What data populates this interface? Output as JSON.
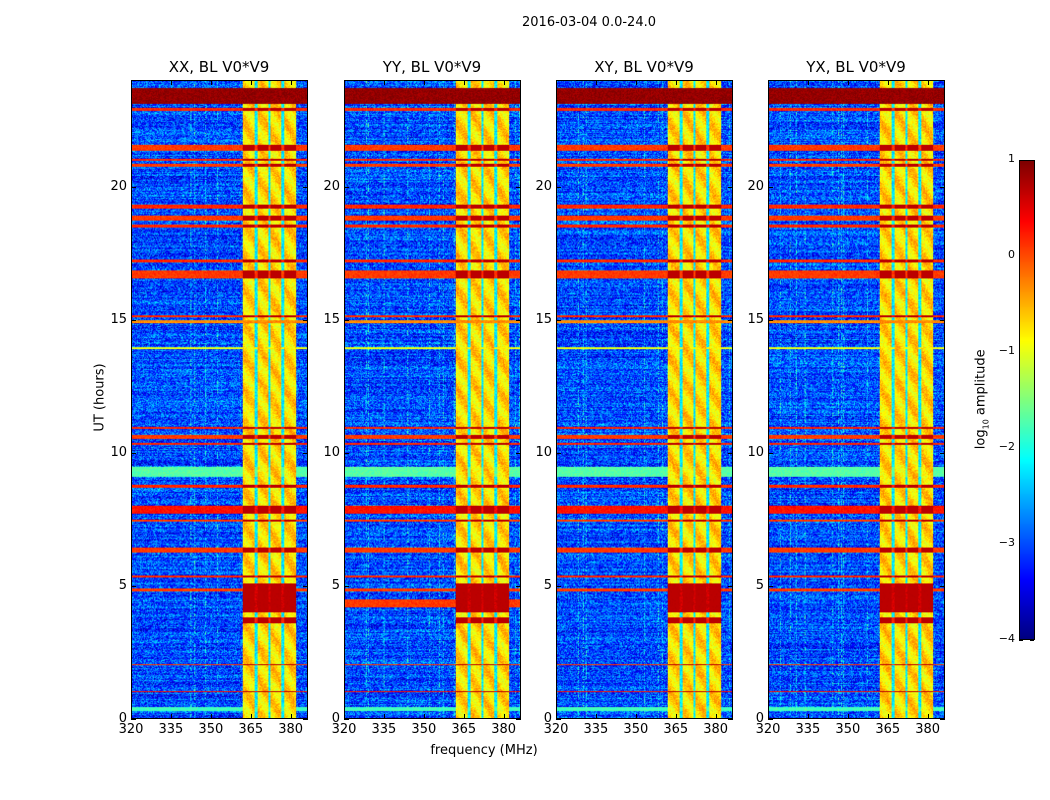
{
  "figure": {
    "suptitle": "2016-03-04 0.0-24.0",
    "xlabel": "frequency (MHz)",
    "ylabel": "UT (hours)",
    "colorbar_label_prefix": "log",
    "colorbar_label_sub": "10",
    "colorbar_label_suffix": " amplitude"
  },
  "chart_data": {
    "type": "heatmap",
    "colormap": "jet",
    "clim": [
      -4,
      1
    ],
    "colorbar_ticks": [
      "1",
      "0",
      "−1",
      "−2",
      "−3",
      "−4"
    ],
    "colorbar_tick_values": [
      1,
      0,
      -1,
      -2,
      -3,
      -4
    ],
    "xlim": [
      320,
      386.5
    ],
    "ylim": [
      0,
      24
    ],
    "xticks": [
      320,
      335,
      350,
      365,
      380
    ],
    "yticks": [
      0,
      5,
      10,
      15,
      20
    ],
    "background_level": -3.0,
    "signal_band": {
      "fmin": 362,
      "fmax": 382,
      "level": -0.7,
      "gaps_mhz": [
        367,
        372,
        377
      ]
    },
    "rfi_rows": [
      {
        "t0": 23.15,
        "t1": 23.75,
        "level": 0.9,
        "full": true
      },
      {
        "t0": 22.9,
        "t1": 23.0,
        "level": 0.2,
        "full": true
      },
      {
        "t0": 21.4,
        "t1": 21.6,
        "level": 0.1,
        "full": true
      },
      {
        "t0": 21.0,
        "t1": 21.1,
        "level": 0.2,
        "full": true
      },
      {
        "t0": 20.8,
        "t1": 20.9,
        "level": 0.1,
        "full": true
      },
      {
        "t0": 19.2,
        "t1": 19.35,
        "level": 0.2,
        "full": true
      },
      {
        "t0": 18.75,
        "t1": 18.95,
        "level": 0.1,
        "full": true
      },
      {
        "t0": 18.5,
        "t1": 18.6,
        "level": 0.2,
        "full": true
      },
      {
        "t0": 17.2,
        "t1": 17.3,
        "level": 0.2,
        "full": true
      },
      {
        "t0": 16.6,
        "t1": 16.9,
        "level": 0.1,
        "full": true
      },
      {
        "t0": 15.1,
        "t1": 15.2,
        "level": 0.2,
        "full": true
      },
      {
        "t0": 14.9,
        "t1": 15.0,
        "level": -0.3,
        "full": true
      },
      {
        "t0": 13.9,
        "t1": 14.0,
        "level": -1.0,
        "full": true
      },
      {
        "t0": 10.9,
        "t1": 11.0,
        "level": 0.2,
        "full": true
      },
      {
        "t0": 10.55,
        "t1": 10.7,
        "level": 0.1,
        "full": true
      },
      {
        "t0": 10.3,
        "t1": 10.4,
        "level": 0.2,
        "full": true
      },
      {
        "t0": 9.1,
        "t1": 9.5,
        "level": -1.7,
        "full": true
      },
      {
        "t0": 8.7,
        "t1": 8.8,
        "level": 0.2,
        "full": true
      },
      {
        "t0": 7.7,
        "t1": 8.0,
        "level": 0.3,
        "full": true
      },
      {
        "t0": 7.4,
        "t1": 7.5,
        "level": 0.1,
        "full": true
      },
      {
        "t0": 6.25,
        "t1": 6.45,
        "level": 0.1,
        "full": true
      },
      {
        "t0": 5.3,
        "t1": 5.4,
        "level": 0.2,
        "full": true
      },
      {
        "t0": 4.8,
        "t1": 4.9,
        "level": 0.1,
        "full": true
      },
      {
        "t0": 4.0,
        "t1": 5.1,
        "level": 0.6,
        "full": false
      },
      {
        "t0": 3.6,
        "t1": 3.8,
        "level": 0.2,
        "full": false
      },
      {
        "t0": 2.0,
        "t1": 2.05,
        "level": 0.1,
        "full": true
      },
      {
        "t0": 1.0,
        "t1": 1.05,
        "level": 0.3,
        "full": true
      },
      {
        "t0": 0.3,
        "t1": 0.45,
        "level": -1.8,
        "full": true
      }
    ],
    "panels": [
      {
        "title": "XX, BL V0*V9",
        "extra_rows": []
      },
      {
        "title": "YY, BL V0*V9",
        "extra_rows": [
          {
            "t0": 4.2,
            "t1": 4.5,
            "level": 0.1,
            "full": true
          }
        ]
      },
      {
        "title": "XY, BL V0*V9",
        "extra_rows": []
      },
      {
        "title": "YX, BL V0*V9",
        "extra_rows": []
      }
    ]
  }
}
